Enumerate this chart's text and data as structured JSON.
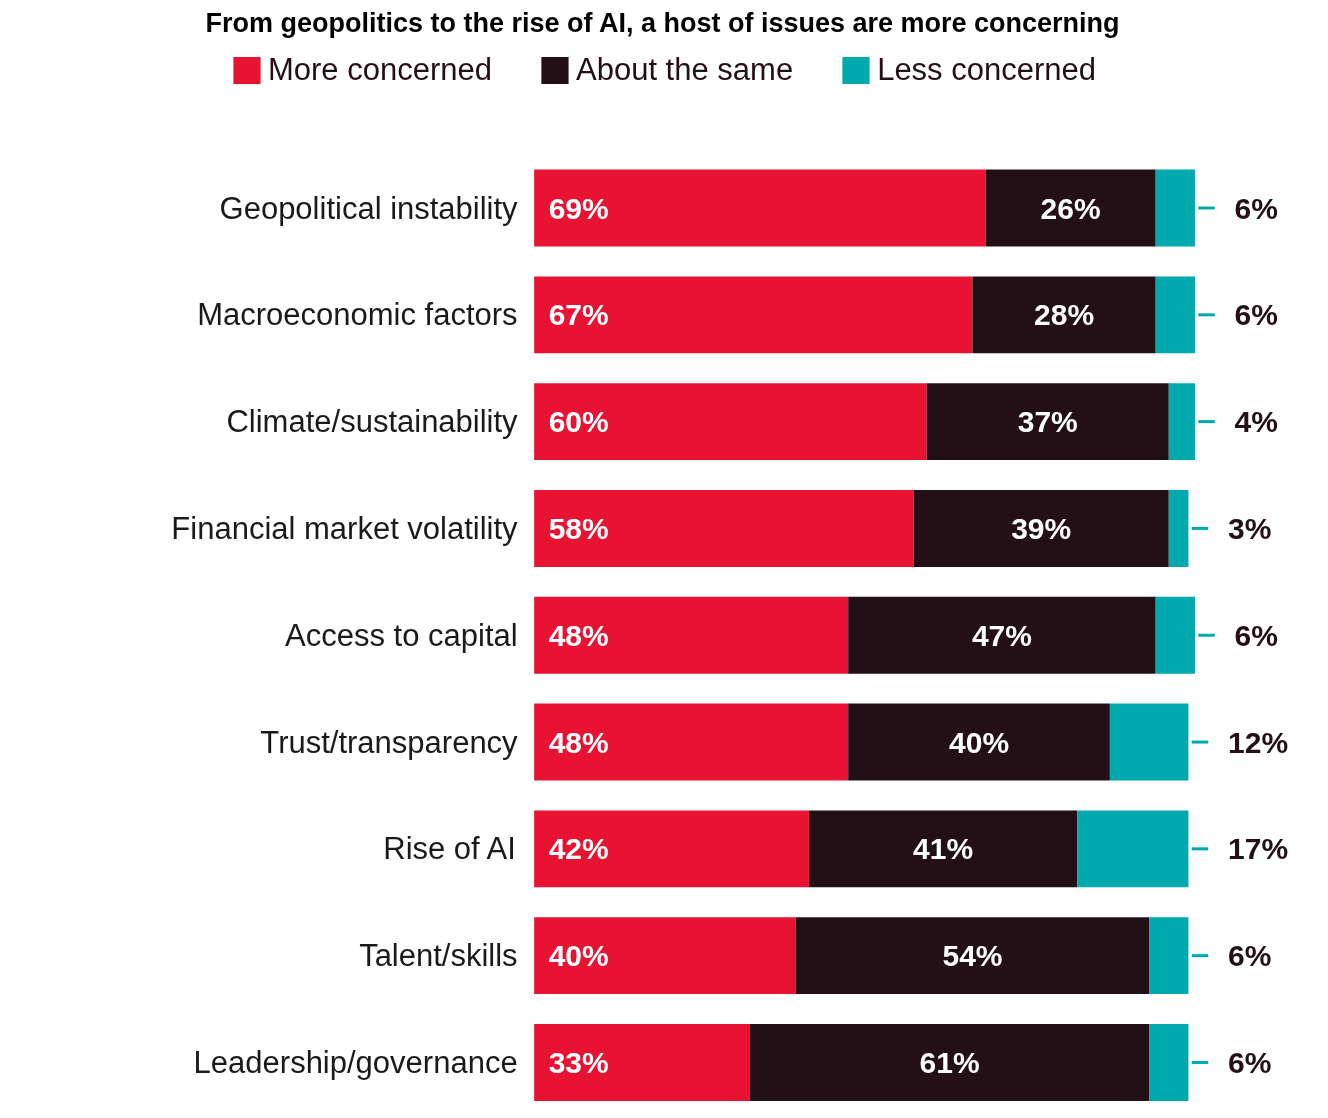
{
  "chart_data": {
    "type": "bar",
    "title": "From geopolitics to the rise of AI, a host of issues are more concerning",
    "orientation": "horizontal",
    "stacked": true,
    "legend": "top",
    "categories": [
      "Geopolitical instability",
      "Macroeconomic factors",
      "Climate/sustainability",
      "Financial market volatility",
      "Access to capital",
      "Trust/transparency",
      "Rise of AI",
      "Talent/skills",
      "Leadership/governance"
    ],
    "series": [
      {
        "name": "More concerned",
        "color": "#e81333",
        "values": [
          69,
          67,
          60,
          58,
          48,
          48,
          42,
          40,
          33
        ],
        "value_labels": [
          "69%",
          "67%",
          "60%",
          "58%",
          "48%",
          "48%",
          "42%",
          "40%",
          "33%"
        ]
      },
      {
        "name": "About the same",
        "color": "#231016",
        "values": [
          26,
          28,
          37,
          39,
          47,
          40,
          41,
          54,
          61
        ],
        "value_labels": [
          "26%",
          "28%",
          "37%",
          "39%",
          "47%",
          "40%",
          "41%",
          "54%",
          "61%"
        ]
      },
      {
        "name": "Less concerned",
        "color": "#00a9ae",
        "values": [
          6,
          6,
          4,
          3,
          6,
          12,
          17,
          6,
          6
        ],
        "value_labels": [
          "6%",
          "6%",
          "4%",
          "3%",
          "6%",
          "12%",
          "17%",
          "6%",
          "6%"
        ]
      }
    ]
  }
}
